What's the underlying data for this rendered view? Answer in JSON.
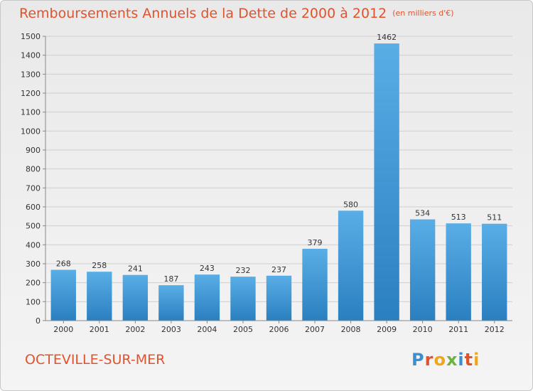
{
  "header": {
    "title": "Remboursements Annuels de la Dette de 2000 à 2012",
    "unit": "(en milliers d'€)"
  },
  "footer": {
    "city": "OCTEVILLE-SUR-MER",
    "brand_logo": "Proxiti"
  },
  "colors": {
    "title": "#e0532d",
    "bar_light": "#5aaee6",
    "bar_dark": "#2a7fc0",
    "grid": "#cfcfcf",
    "axis": "#888888"
  },
  "chart_data": {
    "type": "bar",
    "title": "Remboursements Annuels de la Dette de 2000 à 2012",
    "ylabel": "",
    "xlabel": "",
    "categories": [
      "2000",
      "2001",
      "2002",
      "2003",
      "2004",
      "2005",
      "2006",
      "2007",
      "2008",
      "2009",
      "2010",
      "2011",
      "2012"
    ],
    "values": [
      268,
      258,
      241,
      187,
      243,
      232,
      237,
      379,
      580,
      1462,
      534,
      513,
      511
    ],
    "ylim": [
      0,
      1500
    ],
    "yticks": [
      0,
      100,
      200,
      300,
      400,
      500,
      600,
      700,
      800,
      900,
      1000,
      1100,
      1200,
      1300,
      1400,
      1500
    ],
    "grid": true,
    "data_labels": true
  }
}
